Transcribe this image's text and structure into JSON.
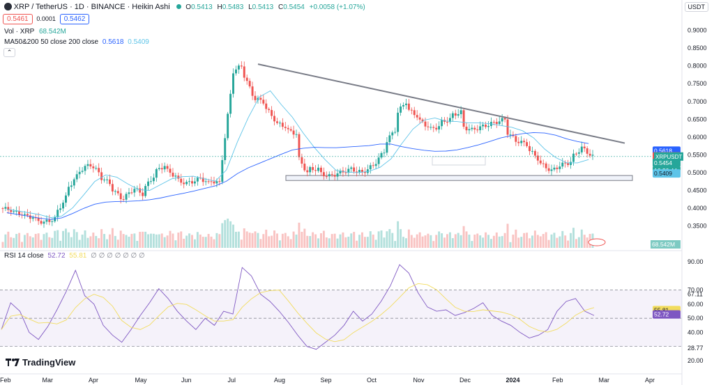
{
  "header": {
    "symbol": "XRP / TetherUS · 1D · BINANCE · Heikin Ashi",
    "ohlc": {
      "o_label": "O",
      "o": "0.5413",
      "h_label": "H",
      "h": "0.5483",
      "l_label": "L",
      "l": "0.5413",
      "c_label": "C",
      "c": "0.5454",
      "change": "+0.0058 (+1.07%)"
    },
    "bid": "0.5461",
    "spread": "0.0001",
    "ask": "0.5462",
    "currency": "USDT"
  },
  "indicators": {
    "vol_label": "Vol · XRP",
    "vol_value": "68.542M",
    "ma_label": "MA50&200 50 close 200 close",
    "ma50_value": "0.5618",
    "ma200_value": "0.5409",
    "rsi_label": "RSI 14 close",
    "rsi_value": "52.72",
    "rsi_ma_value": "55.81",
    "rsi_extra": "∅ ∅ ∅ ∅ ∅ ∅ ∅"
  },
  "price_tags": {
    "ma50": "0.5618",
    "bid": "0.5461",
    "symbol": "XRPUSDT",
    "last": "0.5454",
    "countdown": "16:36:44",
    "ma200": "0.5409",
    "volume": "68.542M",
    "rsi_ma": "55.81",
    "rsi": "52.72"
  },
  "colors": {
    "up": "#26a69a",
    "down": "#ef5350",
    "ma50": "#5ec4e8",
    "ma200": "#2962ff",
    "rsi": "#7e57c2",
    "rsi_ma": "#f2dc5d",
    "trendline": "#787b86"
  },
  "brand": "TradingView",
  "chart_data": {
    "type": "candlestick",
    "price_axis": [
      "0.9000",
      "0.8500",
      "0.8000",
      "0.7500",
      "0.7000",
      "0.6500",
      "0.6000",
      "0.5500",
      "0.5000",
      "0.4500",
      "0.4000",
      "0.3500"
    ],
    "price_range": [
      0.32,
      0.95
    ],
    "rsi_axis": [
      "90.00",
      "70.00",
      "67.11",
      "60.00",
      "50.00",
      "40.00",
      "28.77",
      "20.00"
    ],
    "rsi_range": [
      18,
      94
    ],
    "time_axis": [
      "Feb",
      "Mar",
      "Apr",
      "May",
      "Jun",
      "Jul",
      "Aug",
      "Sep",
      "Oct",
      "Nov",
      "Dec",
      "2024",
      "Feb",
      "Mar",
      "Apr"
    ],
    "trendline": {
      "from": [
        "Jul 19",
        0.805
      ],
      "to": [
        "Mar 3",
        0.583
      ]
    },
    "support_zone": [
      0.478,
      0.492
    ],
    "price_path": [
      [
        0.4,
        0.395
      ],
      [
        0.39,
        0.385
      ],
      [
        0.38,
        0.375
      ],
      [
        0.37,
        0.36
      ],
      [
        0.36,
        0.37
      ],
      [
        0.38,
        0.43
      ],
      [
        0.45,
        0.49
      ],
      [
        0.5,
        0.52
      ],
      [
        0.53,
        0.5
      ],
      [
        0.49,
        0.47
      ],
      [
        0.46,
        0.43
      ],
      [
        0.42,
        0.45
      ],
      [
        0.46,
        0.44
      ],
      [
        0.45,
        0.49
      ],
      [
        0.5,
        0.52
      ],
      [
        0.51,
        0.49
      ],
      [
        0.48,
        0.47
      ],
      [
        0.47,
        0.48
      ],
      [
        0.49,
        0.47
      ],
      [
        0.48,
        0.47
      ],
      [
        0.48,
        0.72
      ],
      [
        0.78,
        0.8
      ],
      [
        0.79,
        0.72
      ],
      [
        0.71,
        0.7
      ],
      [
        0.69,
        0.65
      ],
      [
        0.64,
        0.63
      ],
      [
        0.62,
        0.61
      ],
      [
        0.55,
        0.5
      ],
      [
        0.51,
        0.51
      ],
      [
        0.5,
        0.49
      ],
      [
        0.49,
        0.5
      ],
      [
        0.5,
        0.51
      ],
      [
        0.51,
        0.5
      ],
      [
        0.5,
        0.52
      ],
      [
        0.52,
        0.56
      ],
      [
        0.58,
        0.62
      ],
      [
        0.66,
        0.7
      ],
      [
        0.68,
        0.66
      ],
      [
        0.65,
        0.63
      ],
      [
        0.62,
        0.63
      ],
      [
        0.64,
        0.65
      ],
      [
        0.66,
        0.67
      ],
      [
        0.63,
        0.62
      ],
      [
        0.62,
        0.63
      ],
      [
        0.63,
        0.64
      ],
      [
        0.64,
        0.65
      ],
      [
        0.62,
        0.59
      ],
      [
        0.59,
        0.58
      ],
      [
        0.57,
        0.54
      ],
      [
        0.53,
        0.51
      ],
      [
        0.5,
        0.52
      ],
      [
        0.52,
        0.53
      ],
      [
        0.54,
        0.57
      ],
      [
        0.57,
        0.545
      ]
    ],
    "rsi_path": [
      42,
      61,
      55,
      40,
      35,
      44,
      56,
      69,
      84,
      66,
      60,
      45,
      38,
      33,
      42,
      52,
      61,
      71,
      64,
      55,
      48,
      42,
      50,
      45,
      55,
      53,
      86,
      80,
      67,
      62,
      55,
      47,
      38,
      30,
      28,
      33,
      38,
      45,
      55,
      48,
      53,
      62,
      73,
      88,
      82,
      68,
      58,
      55,
      56,
      52,
      54,
      57,
      61,
      52,
      48,
      45,
      40,
      36,
      38,
      42,
      55,
      62,
      64,
      55,
      52
    ]
  }
}
